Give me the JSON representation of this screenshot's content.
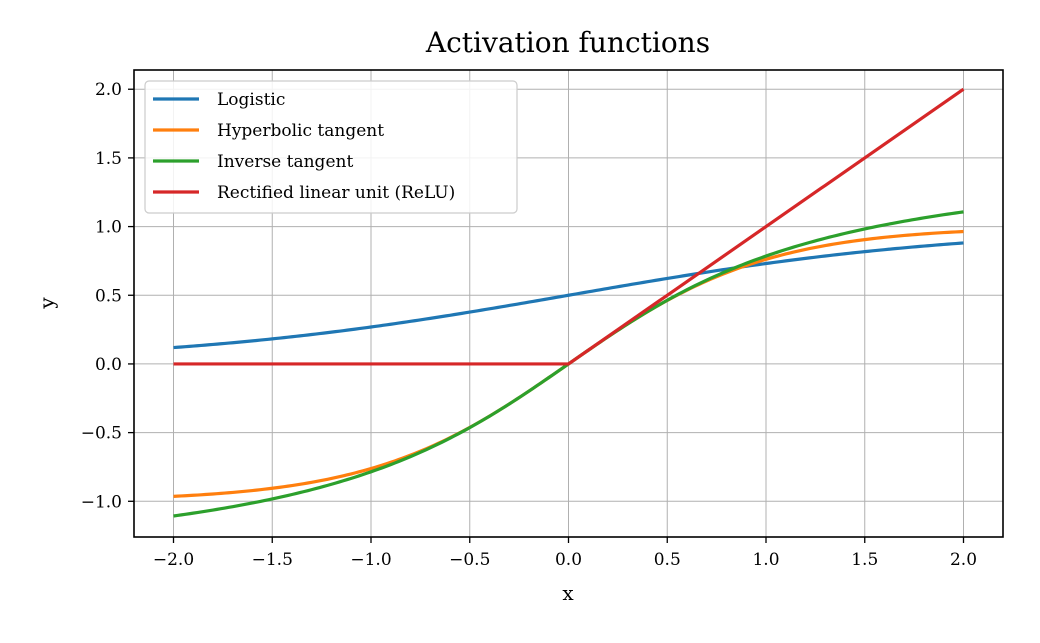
{
  "chart_data": {
    "type": "line",
    "title": "Activation functions",
    "xlabel": "x",
    "ylabel": "y",
    "xlim": [
      -2.2,
      2.2
    ],
    "ylim": [
      -1.26,
      2.14
    ],
    "xticks": [
      -2.0,
      -1.5,
      -1.0,
      -0.5,
      0.0,
      0.5,
      1.0,
      1.5,
      2.0
    ],
    "yticks": [
      -1.0,
      -0.5,
      0.0,
      0.5,
      1.0,
      1.5,
      2.0
    ],
    "xtick_labels": [
      "−2.0",
      "−1.5",
      "−1.0",
      "−0.5",
      "0.0",
      "0.5",
      "1.0",
      "1.5",
      "2.0"
    ],
    "ytick_labels": [
      "−1.0",
      "−0.5",
      "0.0",
      "0.5",
      "1.0",
      "1.5",
      "2.0"
    ],
    "grid": true,
    "legend_position": "upper-left",
    "x": [
      -2.0,
      -1.75,
      -1.5,
      -1.25,
      -1.0,
      -0.75,
      -0.5,
      -0.25,
      0.0,
      0.25,
      0.5,
      0.75,
      1.0,
      1.25,
      1.5,
      1.75,
      2.0
    ],
    "series": [
      {
        "name": "Logistic",
        "color": "#1f77b4",
        "values": [
          0.12,
          0.148,
          0.182,
          0.223,
          0.269,
          0.321,
          0.378,
          0.438,
          0.5,
          0.562,
          0.622,
          0.679,
          0.731,
          0.777,
          0.818,
          0.852,
          0.881
        ]
      },
      {
        "name": "Hyperbolic tangent",
        "color": "#ff7f0e",
        "values": [
          -0.964,
          -0.941,
          -0.905,
          -0.848,
          -0.762,
          -0.635,
          -0.462,
          -0.245,
          0.0,
          0.245,
          0.462,
          0.635,
          0.762,
          0.848,
          0.905,
          0.941,
          0.964
        ]
      },
      {
        "name": "Inverse tangent",
        "color": "#2ca02c",
        "values": [
          -1.107,
          -1.052,
          -0.983,
          -0.896,
          -0.785,
          -0.644,
          -0.464,
          -0.245,
          0.0,
          0.245,
          0.464,
          0.644,
          0.785,
          0.896,
          0.983,
          1.052,
          1.107
        ]
      },
      {
        "name": "Rectified linear unit (ReLU)",
        "color": "#d62728",
        "values": [
          0.0,
          0.0,
          0.0,
          0.0,
          0.0,
          0.0,
          0.0,
          0.0,
          0.0,
          0.25,
          0.5,
          0.75,
          1.0,
          1.25,
          1.5,
          1.75,
          2.0
        ]
      }
    ]
  }
}
